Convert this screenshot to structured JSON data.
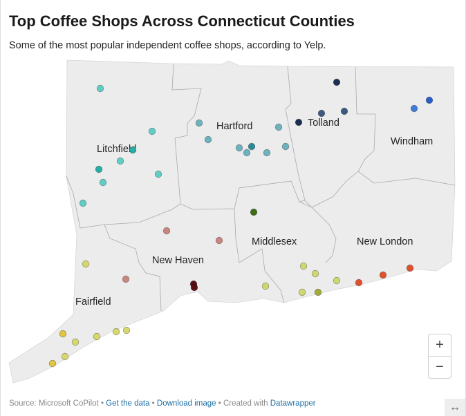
{
  "title": "Top Coffee Shops Across Connecticut Counties",
  "subtitle": "Some of the most popular independent coffee shops, according to Yelp.",
  "counties": [
    "Litchfield",
    "Hartford",
    "Tolland",
    "Windham",
    "Middlesex",
    "New Haven",
    "New London",
    "Fairfield"
  ],
  "zoom": {
    "in_label": "+",
    "out_label": "−"
  },
  "footer": {
    "source": "Source: Microsoft CoPilot",
    "sep": " • ",
    "get_data": "Get the data",
    "download": "Download image",
    "created": "Created with",
    "datawrapper": "Datawrapper"
  },
  "resize_icon": "↔",
  "colors": {
    "land": "#ececec",
    "border": "#aaaaaa"
  }
}
